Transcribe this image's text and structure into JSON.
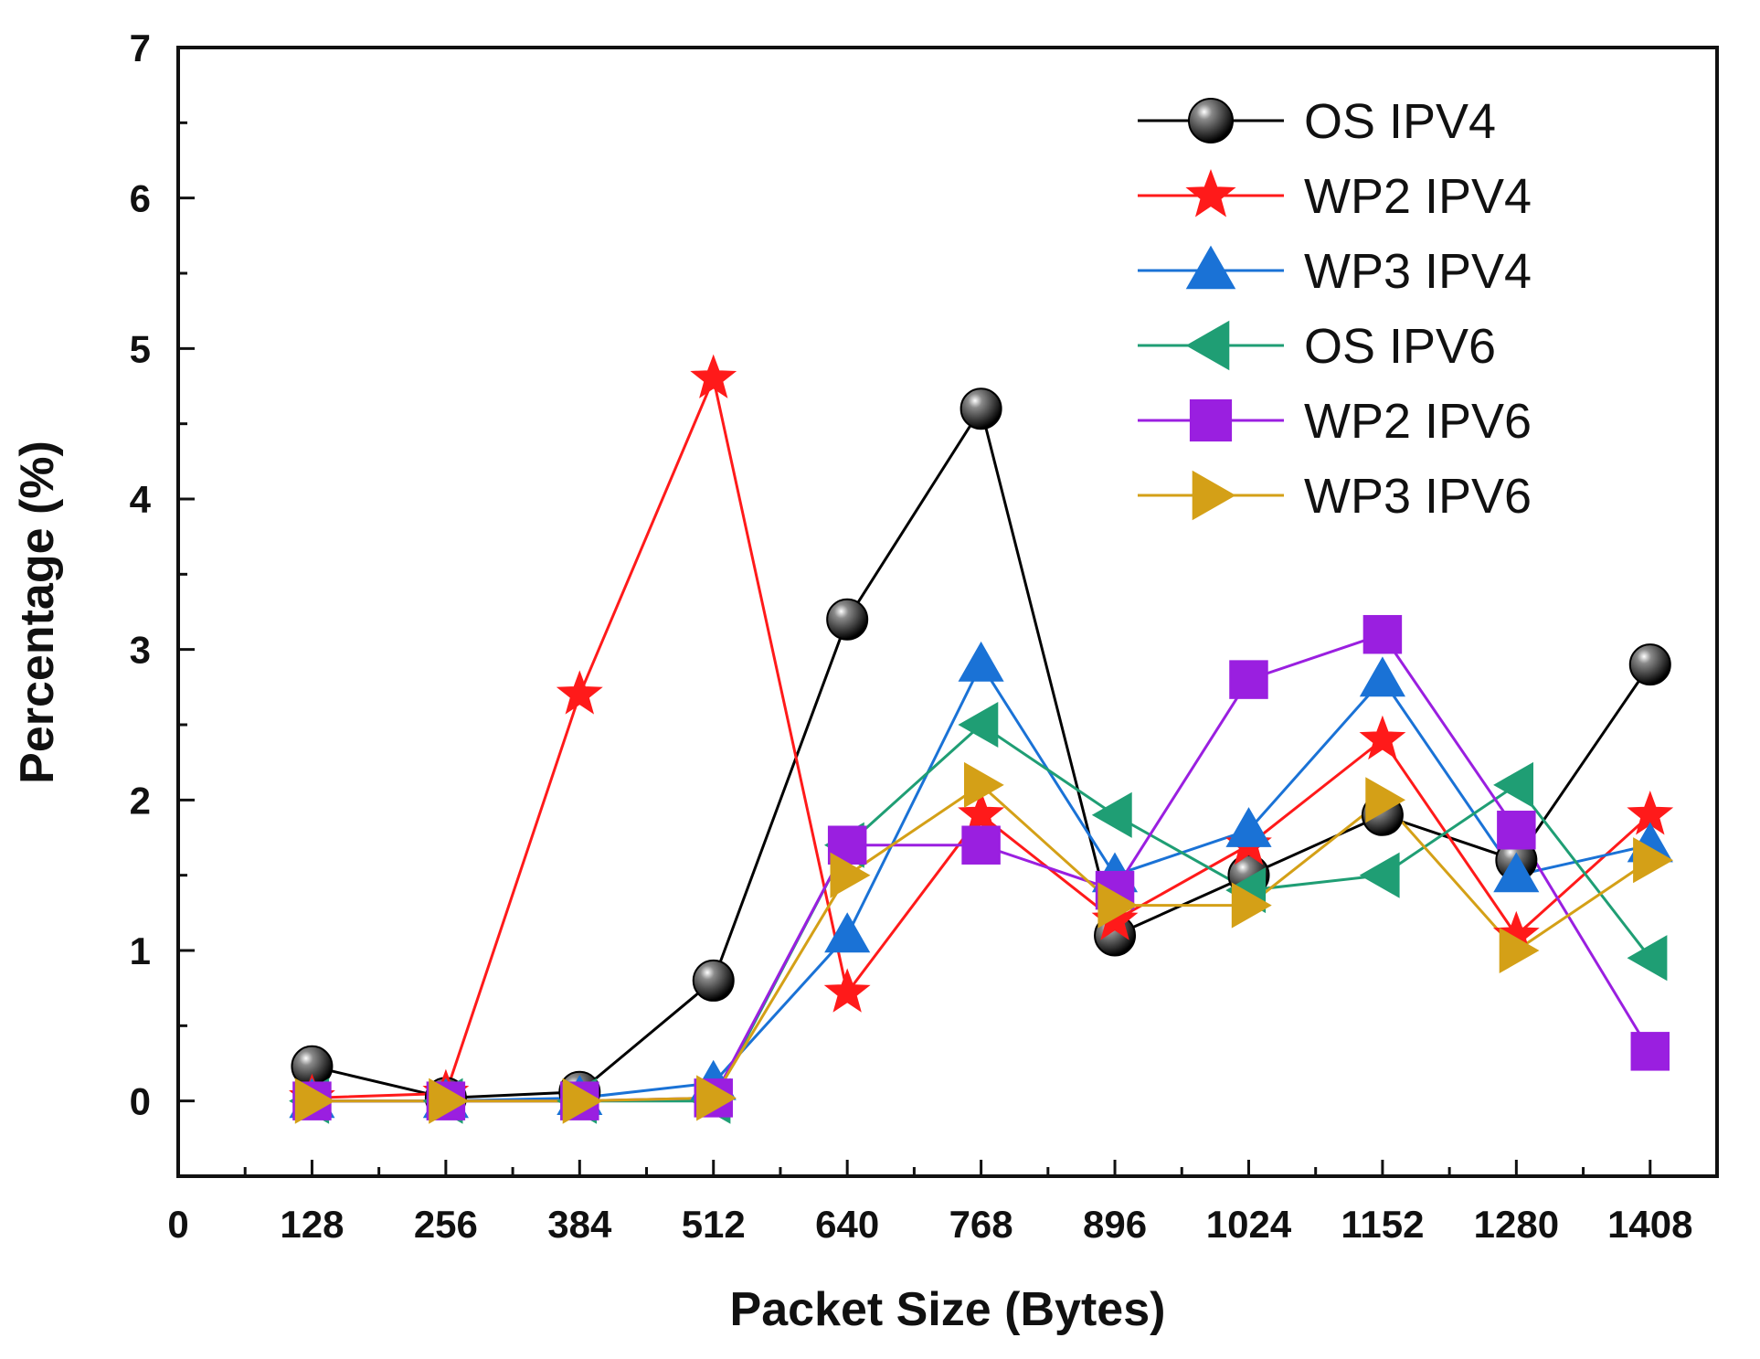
{
  "chart_data": {
    "type": "line",
    "title": "",
    "xlabel": "Packet Size (Bytes)",
    "ylabel": "Percentage (%)",
    "xlim": [
      0,
      1472
    ],
    "ylim": [
      -0.5,
      7
    ],
    "x_ticks": [
      0,
      128,
      256,
      384,
      512,
      640,
      768,
      896,
      1024,
      1152,
      1280,
      1408
    ],
    "y_ticks": [
      0,
      1,
      2,
      3,
      4,
      5,
      6,
      7
    ],
    "legend_position": "top-right",
    "grid": false,
    "series": [
      {
        "name": "OS IPV4",
        "color": "#000000",
        "marker": "sphere",
        "x": [
          128,
          256,
          384,
          512,
          640,
          768,
          896,
          1024,
          1152,
          1280,
          1408
        ],
        "values": [
          0.23,
          0.02,
          0.06,
          0.8,
          3.2,
          4.6,
          1.1,
          1.5,
          1.9,
          1.6,
          2.9
        ]
      },
      {
        "name": "WP2 IPV4",
        "color": "#ff1a1a",
        "marker": "star",
        "x": [
          128,
          256,
          384,
          512,
          640,
          768,
          896,
          1024,
          1152,
          1280,
          1408
        ],
        "values": [
          0.02,
          0.05,
          2.7,
          4.8,
          0.72,
          1.9,
          1.2,
          1.7,
          2.4,
          1.1,
          1.9
        ]
      },
      {
        "name": "WP3 IPV4",
        "color": "#1a72d6",
        "marker": "triangle-up",
        "x": [
          128,
          256,
          384,
          512,
          640,
          768,
          896,
          1024,
          1152,
          1280,
          1408
        ],
        "values": [
          0.0,
          0.0,
          0.02,
          0.12,
          1.1,
          2.9,
          1.5,
          1.8,
          2.8,
          1.5,
          1.7
        ]
      },
      {
        "name": "OS IPV6",
        "color": "#1f9e74",
        "marker": "triangle-left",
        "x": [
          128,
          256,
          384,
          512,
          640,
          768,
          896,
          1024,
          1152,
          1280,
          1408
        ],
        "values": [
          0.0,
          0.0,
          0.0,
          0.0,
          1.7,
          2.5,
          1.9,
          1.4,
          1.5,
          2.1,
          0.95
        ]
      },
      {
        "name": "WP2 IPV6",
        "color": "#9a1fe0",
        "marker": "square",
        "x": [
          128,
          256,
          384,
          512,
          640,
          768,
          896,
          1024,
          1152,
          1280,
          1408
        ],
        "values": [
          0.0,
          0.0,
          0.0,
          0.02,
          1.7,
          1.7,
          1.4,
          2.8,
          3.1,
          1.8,
          0.33
        ]
      },
      {
        "name": "WP3 IPV6",
        "color": "#d4a017",
        "marker": "triangle-right",
        "x": [
          128,
          256,
          384,
          512,
          640,
          768,
          896,
          1024,
          1152,
          1280,
          1408
        ],
        "values": [
          0.0,
          0.0,
          0.0,
          0.02,
          1.5,
          2.1,
          1.3,
          1.3,
          2.0,
          1.0,
          1.6
        ]
      }
    ]
  }
}
